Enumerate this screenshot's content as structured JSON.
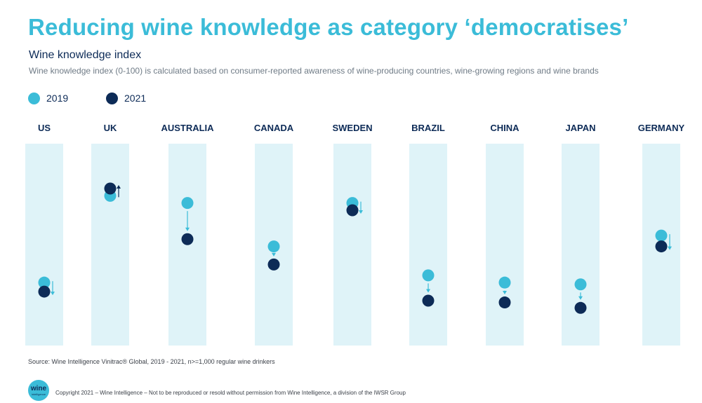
{
  "title": "Reducing wine knowledge as category ‘democratises’",
  "subtitle": "Wine knowledge index",
  "description": "Wine knowledge index (0-100) is calculated based on consumer-reported awareness of wine-producing countries, wine-growing regions and wine brands",
  "legend": [
    {
      "label": "2019",
      "color": "#3bbcd8"
    },
    {
      "label": "2021",
      "color": "#0d2b57"
    }
  ],
  "colors": {
    "column": "#dff3f8",
    "arrow_down": "#3bbcd8",
    "arrow_up": "#0d2b57"
  },
  "chart_data": {
    "type": "dot",
    "title": "Wine knowledge index",
    "categories": [
      "US",
      "UK",
      "AUSTRALIA",
      "CANADA",
      "SWEDEN",
      "BRAZIL",
      "CHINA",
      "JAPAN",
      "GERMANY"
    ],
    "series": [
      {
        "name": "2019",
        "values": [
          29,
          77,
          73,
          49,
          73,
          33,
          29,
          28,
          55
        ]
      },
      {
        "name": "2021",
        "values": [
          24,
          81,
          53,
          39,
          69,
          19,
          18,
          15,
          49
        ]
      }
    ],
    "ylim": [
      0,
      100
    ],
    "grid": false,
    "legend_position": "top-left"
  },
  "source": "Source: Wine Intelligence Vinitrac® Global, 2019 - 2021, n>=1,000 regular wine drinkers",
  "logo_text": {
    "main": "wine",
    "sub": "intelligence"
  },
  "copyright": "Copyright 2021 – Wine Intelligence – Not to be reproduced or resold without permission from Wine Intelligence, a division of the IWSR Group"
}
